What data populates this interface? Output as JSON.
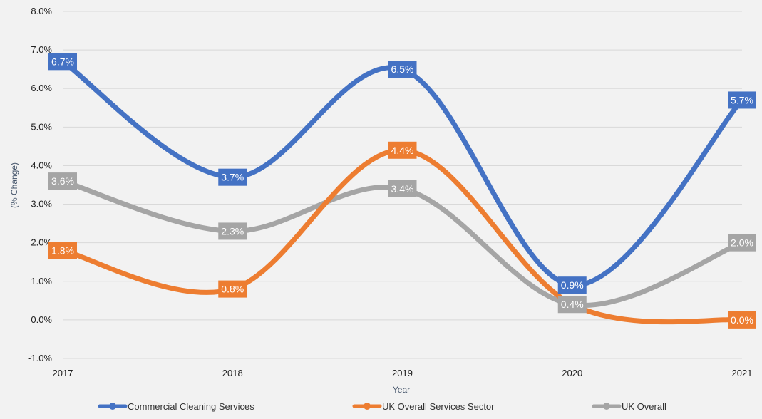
{
  "chart_data": {
    "type": "line",
    "title": "",
    "xlabel": "Year",
    "ylabel": "(% Change)",
    "categories": [
      "2017",
      "2018",
      "2019",
      "2020",
      "2021"
    ],
    "ylim": [
      -1.0,
      8.0
    ],
    "yticks": [
      -1.0,
      0.0,
      1.0,
      2.0,
      3.0,
      4.0,
      5.0,
      6.0,
      7.0,
      8.0
    ],
    "ytick_labels": [
      "-1.0%",
      "0.0%",
      "1.0%",
      "2.0%",
      "3.0%",
      "4.0%",
      "5.0%",
      "6.0%",
      "7.0%",
      "8.0%"
    ],
    "grid": true,
    "smooth": true,
    "legend_position": "bottom",
    "series": [
      {
        "name": "Commercial Cleaning Services",
        "color": "#4472c4",
        "values": [
          6.7,
          3.7,
          6.5,
          0.9,
          5.7
        ],
        "labels": [
          "6.7%",
          "3.7%",
          "6.5%",
          "0.9%",
          "5.7%"
        ]
      },
      {
        "name": "UK Overall Services Sector",
        "color": "#ed7d31",
        "values": [
          1.8,
          0.8,
          4.4,
          0.4,
          0.0
        ],
        "labels": [
          "1.8%",
          "0.8%",
          "4.4%",
          "",
          "0.0%"
        ]
      },
      {
        "name": "UK Overall",
        "color": "#a5a5a5",
        "values": [
          3.6,
          2.3,
          3.4,
          0.4,
          2.0
        ],
        "labels": [
          "3.6%",
          "2.3%",
          "3.4%",
          "0.4%",
          "2.0%"
        ]
      }
    ]
  }
}
